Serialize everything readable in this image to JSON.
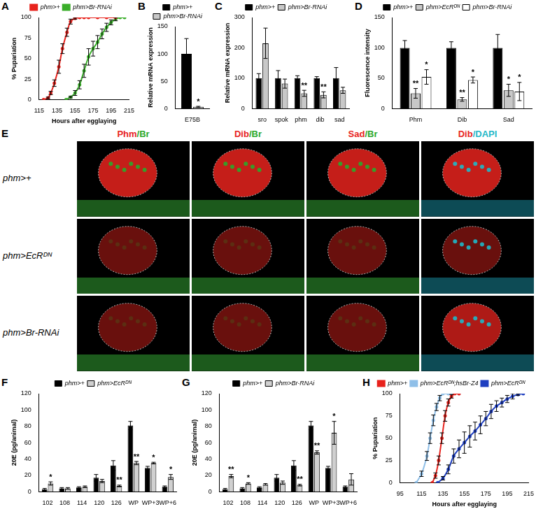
{
  "chart_data": [
    {
      "panel": "A",
      "type": "line",
      "x_label": "Hours after egglaying",
      "y_label": "% Pupariation",
      "xlim": [
        115,
        215
      ],
      "xticks": [
        115,
        135,
        155,
        175,
        195,
        215
      ],
      "ylim": [
        0,
        100
      ],
      "yticks": [
        0,
        25,
        50,
        75,
        100
      ],
      "legend": "top",
      "series": [
        {
          "name": "phm>+",
          "color": "#e8231d",
          "x": [
            120,
            125,
            128,
            132,
            137,
            141,
            146,
            150,
            155,
            160,
            165,
            170,
            180,
            190,
            200
          ],
          "values": [
            0,
            2,
            8,
            20,
            40,
            62,
            82,
            95,
            99,
            100,
            100,
            100,
            100,
            100,
            100
          ],
          "errors": [
            0,
            1,
            2,
            4,
            8,
            6,
            5,
            3,
            1,
            0,
            0,
            0,
            0,
            0,
            0
          ]
        },
        {
          "name": "phm>Br-RNAi",
          "color": "#3aae2a",
          "x": [
            145,
            150,
            155,
            160,
            165,
            170,
            175,
            180,
            185,
            190,
            195,
            200,
            205,
            210
          ],
          "values": [
            0,
            3,
            8,
            18,
            35,
            52,
            62,
            70,
            80,
            88,
            94,
            98,
            100,
            100
          ],
          "errors": [
            0,
            1,
            3,
            5,
            8,
            10,
            9,
            8,
            6,
            5,
            3,
            2,
            0,
            0
          ]
        }
      ]
    },
    {
      "panel": "B",
      "type": "bar",
      "categories": [
        "E75B"
      ],
      "y_label": "Relative mRNA expression",
      "ylim": [
        0,
        150
      ],
      "yticks": [
        0,
        50,
        100,
        150
      ],
      "legend": "top",
      "series": [
        {
          "name": "phm>+",
          "color": "#000000",
          "values": [
            100
          ],
          "errors": [
            28
          ],
          "significance": [
            null
          ]
        },
        {
          "name": "phm>Br-RNAi",
          "color": "#c8c8c8",
          "values": [
            3
          ],
          "errors": [
            1
          ],
          "significance": [
            "*"
          ]
        }
      ]
    },
    {
      "panel": "C",
      "type": "bar",
      "categories": [
        "sro",
        "spok",
        "phm",
        "dib",
        "sad"
      ],
      "y_label": "Relative mRNA expression",
      "ylim": [
        0,
        300
      ],
      "yticks": [
        0,
        100,
        200,
        300
      ],
      "legend": "top",
      "series": [
        {
          "name": "phm>+",
          "color": "#000000",
          "values": [
            100,
            100,
            100,
            100,
            100
          ],
          "errors": [
            15,
            25,
            8,
            5,
            35
          ],
          "significance": [
            null,
            null,
            null,
            null,
            null
          ]
        },
        {
          "name": "phm>Br-RNAi",
          "color": "#c8c8c8",
          "values": [
            215,
            82,
            50,
            45,
            60
          ],
          "errors": [
            50,
            15,
            10,
            10,
            10
          ],
          "significance": [
            null,
            null,
            "**",
            "**",
            null
          ]
        }
      ]
    },
    {
      "panel": "D",
      "type": "bar",
      "categories": [
        "Phm",
        "Dib",
        "Sad"
      ],
      "y_label": "Fluorescence intensity",
      "ylim": [
        0,
        150
      ],
      "yticks": [
        0,
        50,
        100,
        150
      ],
      "legend": "top",
      "series": [
        {
          "name": "phm>+",
          "color": "#000000",
          "values": [
            100,
            100,
            100
          ],
          "errors": [
            12,
            10,
            22
          ],
          "significance": [
            null,
            null,
            null
          ]
        },
        {
          "name": "phm>EcRᴰᴺ",
          "color": "#c8c8c8",
          "values": [
            25,
            15,
            30
          ],
          "errors": [
            8,
            3,
            10
          ],
          "significance": [
            "**",
            "**",
            "*"
          ]
        },
        {
          "name": "phm>Br-RNAi",
          "color": "#ffffff",
          "values": [
            52,
            47,
            28
          ],
          "errors": [
            12,
            5,
            15
          ],
          "significance": [
            "*",
            "*",
            "*"
          ]
        }
      ]
    },
    {
      "panel": "F",
      "type": "bar",
      "categories": [
        "102",
        "108",
        "114",
        "120",
        "126",
        "WP",
        "WP+3",
        "WP+6"
      ],
      "y_label": "20E (pg/animal)",
      "ylim": [
        0,
        120
      ],
      "yticks": [
        0,
        20,
        40,
        60,
        80,
        100,
        120
      ],
      "legend": "top",
      "series": [
        {
          "name": "phm>+",
          "color": "#000000",
          "values": [
            3,
            4,
            5,
            17,
            32,
            81,
            29,
            6
          ],
          "errors": [
            1,
            1,
            1,
            4,
            6,
            5,
            2,
            1
          ],
          "significance": [
            null,
            null,
            null,
            null,
            null,
            null,
            null,
            null
          ]
        },
        {
          "name": "phm>EcRᴰᴺ",
          "color": "#d0d0d0",
          "values": [
            10,
            4,
            6,
            13,
            7,
            35,
            35,
            18
          ],
          "errors": [
            2,
            1,
            1,
            2,
            1,
            2,
            1,
            3
          ],
          "significance": [
            "*",
            null,
            null,
            null,
            "**",
            "**",
            "*",
            "*"
          ]
        }
      ]
    },
    {
      "panel": "G",
      "type": "bar",
      "categories": [
        "102",
        "108",
        "114",
        "120",
        "126",
        "WP",
        "WP+3",
        "WP+6"
      ],
      "y_label": "20E (pg/animal)",
      "ylim": [
        0,
        120
      ],
      "yticks": [
        0,
        20,
        40,
        60,
        80,
        100,
        120
      ],
      "legend": "top",
      "series": [
        {
          "name": "phm>+",
          "color": "#000000",
          "values": [
            3,
            4,
            5,
            17,
            32,
            81,
            29,
            6
          ],
          "errors": [
            1,
            1,
            1,
            4,
            6,
            5,
            2,
            1
          ],
          "significance": [
            null,
            null,
            null,
            null,
            null,
            null,
            null,
            null
          ]
        },
        {
          "name": "phm>Br-RNAi",
          "color": "#d0d0d0",
          "values": [
            19,
            10,
            9,
            11,
            8,
            48,
            72,
            15
          ],
          "errors": [
            2,
            1,
            1,
            2,
            1,
            2,
            14,
            7
          ],
          "significance": [
            "**",
            "*",
            null,
            null,
            "**",
            "**",
            "*",
            null
          ]
        }
      ]
    },
    {
      "panel": "H",
      "type": "line",
      "x_label": "Hours after egglaying",
      "y_label": "% Pupariation",
      "xlim": [
        95,
        215
      ],
      "xticks": [
        95,
        115,
        135,
        155,
        175,
        195,
        215
      ],
      "ylim": [
        0,
        100
      ],
      "yticks": [
        0,
        25,
        50,
        75,
        100
      ],
      "legend": "top",
      "series": [
        {
          "name": "phm>+",
          "color": "#e8231d",
          "x": [
            125,
            128,
            131,
            134,
            137,
            140,
            143,
            146,
            150
          ],
          "values": [
            0,
            8,
            25,
            50,
            75,
            90,
            97,
            100,
            100
          ],
          "errors": [
            0,
            3,
            5,
            6,
            6,
            4,
            2,
            0,
            0
          ]
        },
        {
          "name": "phm>EcRᴰᴺ;hsBr-Z4",
          "color": "#8fbfe8",
          "x": [
            110,
            115,
            120,
            123,
            126,
            129,
            132,
            135,
            140,
            150
          ],
          "values": [
            0,
            10,
            30,
            50,
            70,
            85,
            95,
            100,
            100,
            100
          ],
          "errors": [
            0,
            3,
            5,
            6,
            6,
            4,
            3,
            0,
            0,
            0
          ]
        },
        {
          "name": "phm>EcRᴰᴺ",
          "color": "#1f3fc0",
          "x": [
            130,
            135,
            140,
            145,
            150,
            155,
            160,
            165,
            170,
            175,
            180,
            185,
            190,
            195,
            200,
            205,
            210
          ],
          "values": [
            0,
            5,
            15,
            30,
            38,
            45,
            52,
            58,
            65,
            72,
            80,
            86,
            90,
            94,
            97,
            99,
            100
          ],
          "errors": [
            0,
            2,
            5,
            8,
            10,
            12,
            12,
            10,
            10,
            8,
            8,
            6,
            5,
            4,
            3,
            1,
            0
          ]
        }
      ]
    }
  ],
  "image_panel": {
    "panel": "E",
    "columns": [
      {
        "label": "Phm/Br",
        "colors": [
          "#e8231d",
          "#2aa82a"
        ]
      },
      {
        "label": "Dib/Br",
        "colors": [
          "#e8231d",
          "#2aa82a"
        ]
      },
      {
        "label": "Sad/Br",
        "colors": [
          "#e8231d",
          "#2aa82a"
        ]
      },
      {
        "label": "Dib/DAPI",
        "colors": [
          "#e8231d",
          "#1fb8c8"
        ]
      }
    ],
    "rows": [
      "phm>+",
      "phm>EcRᴰᴺ",
      "phm>Br-RNAi"
    ]
  }
}
